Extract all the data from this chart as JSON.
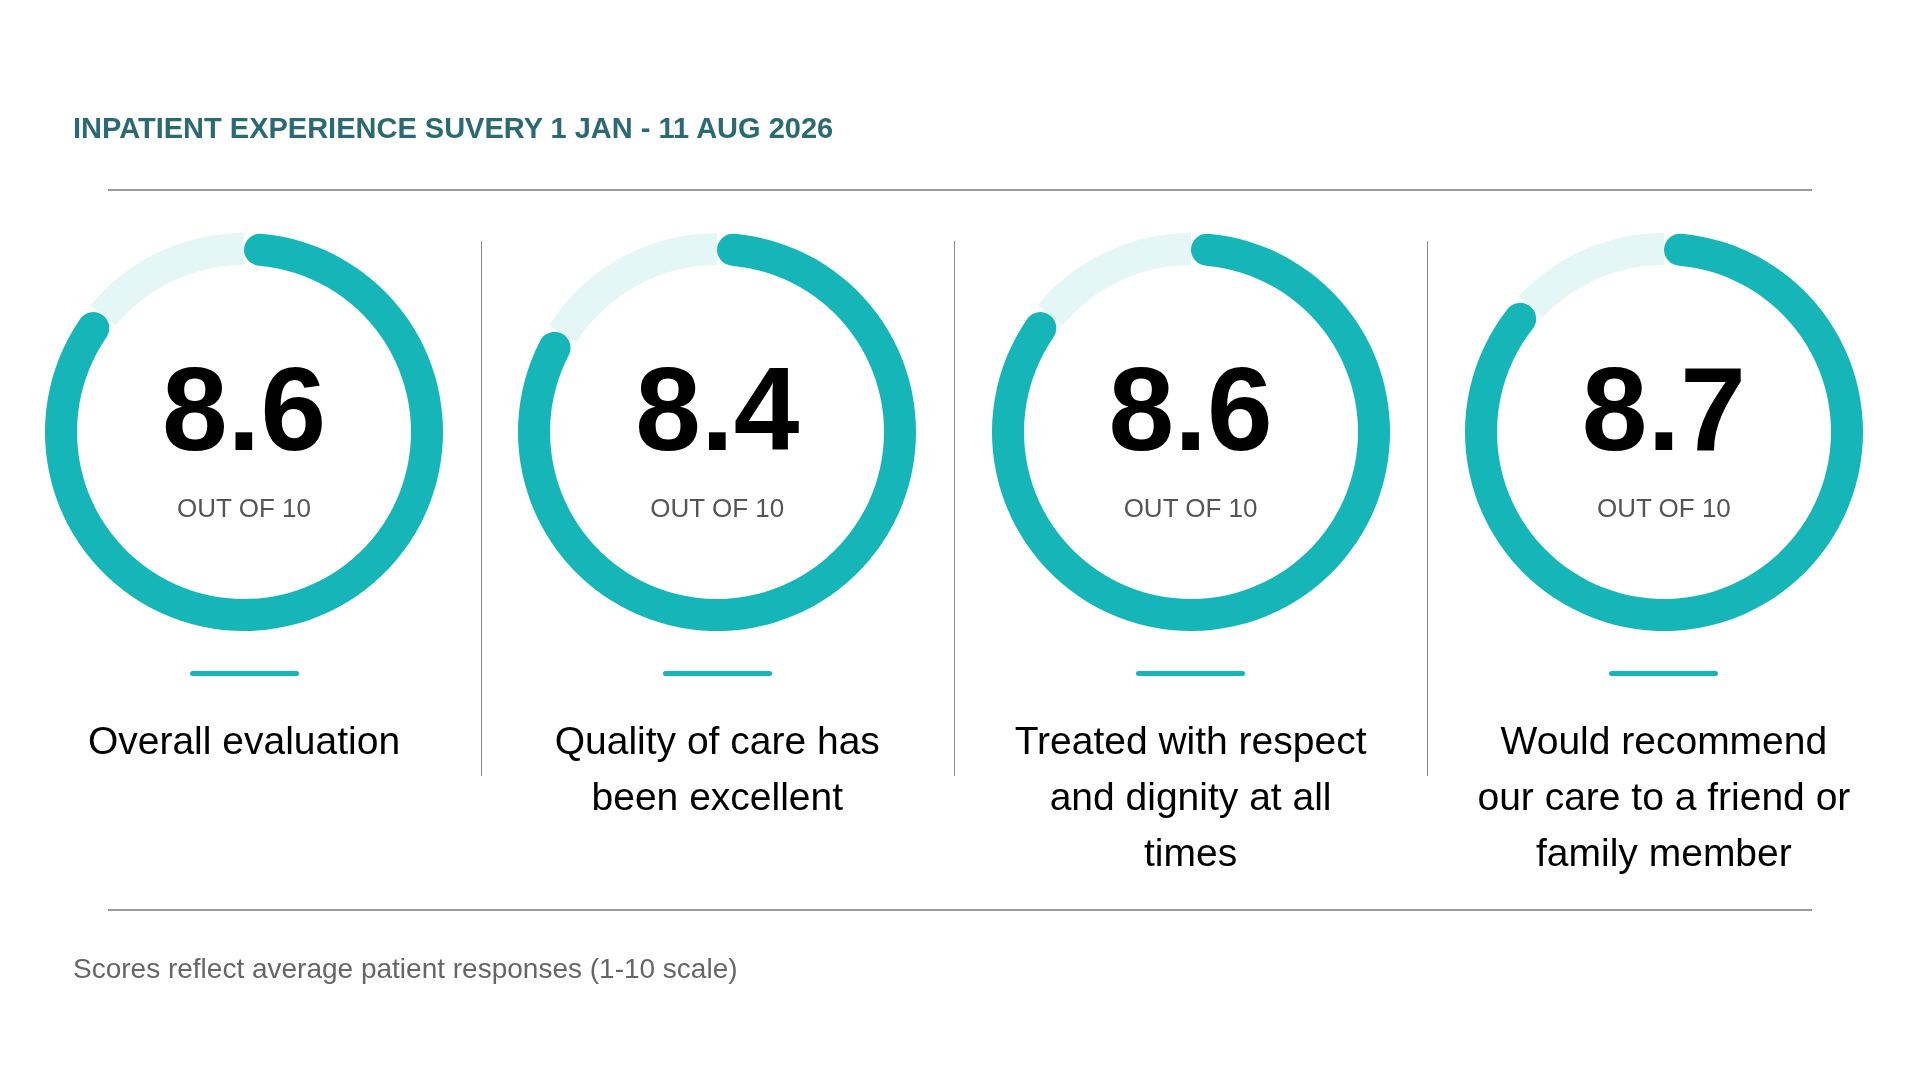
{
  "chart_data": [
    {
      "type": "other",
      "title": "INPATIENT EXPERIENCE SUVERY 1 JAN - 11 AUG 2026",
      "annotations": [
        "Scores reflect average patient responses (1-10 scale)"
      ]
    },
    {
      "type": "donut",
      "title": "Overall evaluation",
      "categories": [
        null,
        null
      ],
      "values": [
        8.6,
        1.4
      ],
      "colors": [
        "#16b6b8",
        "#e5f6f6"
      ],
      "value_labels": [
        "8.6",
        null
      ],
      "annotations": [
        "OUT OF 10"
      ]
    },
    {
      "type": "donut",
      "title": "Quality of care has been excellent",
      "categories": [
        null,
        null
      ],
      "values": [
        8.4,
        1.6
      ],
      "colors": [
        "#16b6b8",
        "#e5f6f6"
      ],
      "value_labels": [
        "8.4",
        null
      ],
      "annotations": [
        "OUT OF 10"
      ]
    },
    {
      "type": "donut",
      "title": "Treated with respect and dignity at all times",
      "categories": [
        null,
        null
      ],
      "values": [
        8.6,
        1.4
      ],
      "colors": [
        "#16b6b8",
        "#e5f6f6"
      ],
      "value_labels": [
        "8.6",
        null
      ],
      "annotations": [
        "OUT OF 10"
      ]
    },
    {
      "type": "donut",
      "title": "Would recommend our care to a friend or family member",
      "categories": [
        null,
        null
      ],
      "values": [
        8.7,
        1.3
      ],
      "colors": [
        "#16b6b8",
        "#e5f6f6"
      ],
      "value_labels": [
        "8.7",
        null
      ],
      "annotations": [
        "OUT OF 10"
      ]
    }
  ]
}
